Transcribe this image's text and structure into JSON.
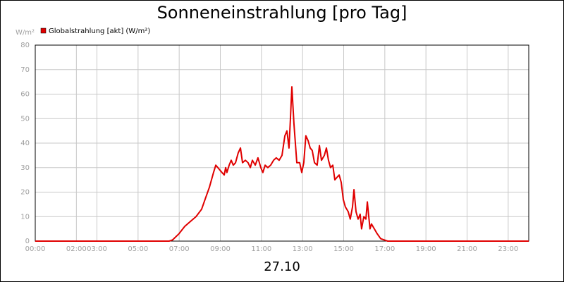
{
  "chart_data": {
    "type": "line",
    "title": "Sonneneinstrahlung [pro Tag]",
    "y_unit": "W/m²",
    "x_label": "27.10",
    "xlim": [
      0,
      24
    ],
    "ylim": [
      0,
      80
    ],
    "xticks": [
      {
        "value": 0,
        "label": "00:00"
      },
      {
        "value": 2,
        "label": "02:00"
      },
      {
        "value": 3,
        "label": "03:00"
      },
      {
        "value": 5,
        "label": "05:00"
      },
      {
        "value": 7,
        "label": "07:00"
      },
      {
        "value": 9,
        "label": "09:00"
      },
      {
        "value": 11,
        "label": "11:00"
      },
      {
        "value": 13,
        "label": "13:00"
      },
      {
        "value": 15,
        "label": "15:00"
      },
      {
        "value": 17,
        "label": "17:00"
      },
      {
        "value": 19,
        "label": "19:00"
      },
      {
        "value": 21,
        "label": "21:00"
      },
      {
        "value": 23,
        "label": "23:00"
      }
    ],
    "yticks": [
      0,
      10,
      20,
      30,
      40,
      50,
      60,
      70,
      80
    ],
    "grid": true,
    "legend": "top-left",
    "x": [
      0,
      6.51,
      6.68,
      6.99,
      7.27,
      7.54,
      7.82,
      8.09,
      8.3,
      8.47,
      8.57,
      8.67,
      8.78,
      8.88,
      8.98,
      9.08,
      9.19,
      9.26,
      9.32,
      9.43,
      9.53,
      9.63,
      9.74,
      9.87,
      9.98,
      10.08,
      10.22,
      10.35,
      10.46,
      10.56,
      10.7,
      10.83,
      10.97,
      11.07,
      11.18,
      11.31,
      11.45,
      11.59,
      11.72,
      11.86,
      12.0,
      12.14,
      12.24,
      12.34,
      12.41,
      12.48,
      12.58,
      12.72,
      12.86,
      12.96,
      13.06,
      13.16,
      13.27,
      13.37,
      13.47,
      13.58,
      13.71,
      13.82,
      13.92,
      14.06,
      14.16,
      14.26,
      14.36,
      14.47,
      14.57,
      14.67,
      14.78,
      14.88,
      14.98,
      15.08,
      15.22,
      15.32,
      15.43,
      15.5,
      15.6,
      15.7,
      15.8,
      15.87,
      15.98,
      16.08,
      16.15,
      16.22,
      16.28,
      16.35,
      16.49,
      16.63,
      16.8,
      16.97,
      17.14,
      24
    ],
    "series": [
      {
        "name": "Globalstrahlung [akt] (W/m²)",
        "color": "#e00000",
        "values": [
          0,
          0,
          0.5,
          3,
          6,
          8,
          10,
          13,
          18,
          22,
          25,
          28,
          31,
          30,
          29,
          28,
          27,
          30,
          28,
          31,
          33,
          31,
          32,
          36,
          38,
          32,
          33,
          32,
          30,
          33,
          31,
          34,
          30,
          28,
          31,
          30,
          31,
          33,
          34,
          33,
          35,
          43,
          45,
          38,
          50,
          63,
          48,
          32,
          32,
          28,
          32,
          43,
          41,
          38,
          37,
          32,
          31,
          39,
          33,
          35,
          38,
          33,
          30,
          31,
          25,
          26,
          27,
          24,
          17,
          14,
          12,
          9,
          14,
          21,
          12,
          9,
          11,
          5,
          10,
          9,
          16,
          10,
          5,
          7,
          5,
          3,
          1,
          0.5,
          0,
          0
        ]
      }
    ]
  }
}
